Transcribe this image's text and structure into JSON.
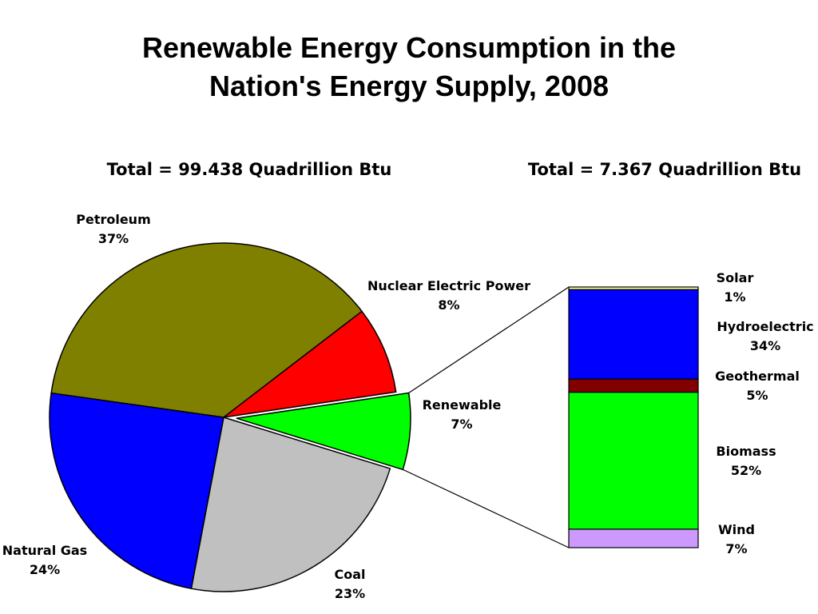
{
  "slide": {
    "title_line1": "Renewable Energy Consumption in the",
    "title_line2": "Nation's Energy Supply, 2008"
  },
  "chart_data": [
    {
      "type": "pie",
      "total_label": "Total = 99.438 Quadrillion Btu",
      "slices": [
        {
          "name": "Petroleum",
          "label": "37%",
          "value": 37,
          "color": "#808000"
        },
        {
          "name": "Nuclear Electric Power",
          "label": "8%",
          "value": 8,
          "color": "#ff0000"
        },
        {
          "name": "Renewable",
          "label": "7%",
          "value": 7,
          "color": "#00ff00",
          "exploded": true
        },
        {
          "name": "Coal",
          "label": "23%",
          "value": 23,
          "color": "#c0c0c0"
        },
        {
          "name": "Natural Gas",
          "label": "24%",
          "value": 24,
          "color": "#0000ff"
        }
      ]
    },
    {
      "type": "bar",
      "stacked": true,
      "total_label": "Total = 7.367 Quadrillion Btu",
      "segments": [
        {
          "name": "Solar",
          "label": "1%",
          "value": 1,
          "color": "#ffff99"
        },
        {
          "name": "Hydroelectric",
          "label": "34%",
          "value": 34,
          "color": "#0000ff"
        },
        {
          "name": "Geothermal",
          "label": "5%",
          "value": 5,
          "color": "#800000"
        },
        {
          "name": "Biomass",
          "label": "52%",
          "value": 52,
          "color": "#00ff00"
        },
        {
          "name": "Wind",
          "label": "7%",
          "value": 7,
          "color": "#cc99ff"
        }
      ]
    }
  ]
}
